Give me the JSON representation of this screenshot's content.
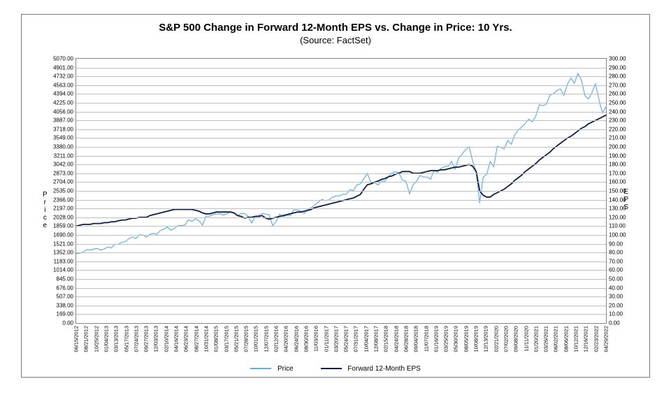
{
  "chart": {
    "type": "line-dual-axis",
    "title": "S&P 500 Change in Forward 12-Month EPS vs. Change in Price: 10 Yrs.",
    "subtitle": "(Source: FactSet)",
    "background_color": "#ffffff",
    "grid_color": "#bfbfbf",
    "border_color": "#7a7a7a",
    "title_fontsize": 15,
    "subtitle_fontsize": 13,
    "tick_fontsize": 8,
    "axis_label_fontsize": 10,
    "y_left": {
      "label": "Price",
      "min": 0.0,
      "max": 5070.0,
      "step": 169.0,
      "ticks": [
        "0.00",
        "169.00",
        "338.00",
        "507.00",
        "676.00",
        "845.00",
        "1014.00",
        "1183.00",
        "1352.00",
        "1521.00",
        "1690.00",
        "1859.00",
        "2028.00",
        "2197.00",
        "2366.00",
        "2535.00",
        "2704.00",
        "2873.00",
        "3042.00",
        "3211.00",
        "3380.00",
        "3549.00",
        "3718.00",
        "3887.00",
        "4056.00",
        "4225.00",
        "4394.00",
        "4563.00",
        "4732.00",
        "4901.00",
        "5070.00"
      ]
    },
    "y_right": {
      "label": "EPS",
      "min": 0.0,
      "max": 300.0,
      "step": 10.0,
      "ticks": [
        "0.00",
        "10.00",
        "20.00",
        "30.00",
        "40.00",
        "50.00",
        "60.00",
        "70.00",
        "80.00",
        "90.00",
        "100.00",
        "110.00",
        "120.00",
        "130.00",
        "140.00",
        "150.00",
        "160.00",
        "170.00",
        "180.00",
        "190.00",
        "200.00",
        "210.00",
        "220.00",
        "230.00",
        "240.00",
        "250.00",
        "260.00",
        "270.00",
        "280.00",
        "290.00",
        "300.00"
      ]
    },
    "x": {
      "labels": [
        "06/15/2012",
        "08/21/2012",
        "10/25/2012",
        "01/04/2013",
        "03/13/2013",
        "05/17/2013",
        "07/24/2013",
        "09/27/2013",
        "12/03/2013",
        "02/10/2014",
        "04/16/2014",
        "06/23/2014",
        "08/27/2014",
        "10/31/2014",
        "01/08/2015",
        "03/17/2015",
        "05/21/2015",
        "07/28/2015",
        "10/01/2015",
        "12/07/2015",
        "02/12/2016",
        "04/20/2016",
        "06/24/2016",
        "08/30/2016",
        "11/03/2016",
        "01/11/2017",
        "03/20/2017",
        "05/24/2017",
        "07/31/2017",
        "10/04/2017",
        "12/08/2017",
        "02/15/2018",
        "04/24/2018",
        "06/28/2018",
        "09/04/2018",
        "11/07/2018",
        "01/16/2019",
        "03/25/2019",
        "05/30/2019",
        "08/05/2019",
        "10/08/2019",
        "12/13/2019",
        "02/21/2020",
        "07/02/2020",
        "09/08/2020",
        "11/11/2020",
        "01/20/2021",
        "03/26/2021",
        "06/02/2021",
        "08/06/2021",
        "10/12/2021",
        "12/16/2021",
        "02/23/2022",
        "04/29/2022"
      ]
    },
    "series": {
      "price": {
        "label": "Price",
        "axis": "left",
        "color": "#5eb1e4",
        "line_width": 1.2,
        "data": [
          1330,
          1340,
          1360,
          1410,
          1400,
          1420,
          1430,
          1400,
          1420,
          1460,
          1440,
          1510,
          1510,
          1550,
          1560,
          1620,
          1650,
          1620,
          1690,
          1690,
          1650,
          1700,
          1720,
          1700,
          1780,
          1800,
          1840,
          1780,
          1820,
          1870,
          1870,
          1880,
          1980,
          1950,
          2000,
          1960,
          1880,
          2050,
          2050,
          2080,
          2090,
          2100,
          2070,
          2100,
          2130,
          2110,
          2060,
          2100,
          2100,
          2050,
          1920,
          2050,
          2060,
          2100,
          2090,
          2080,
          1870,
          1950,
          2090,
          2040,
          2070,
          2060,
          2170,
          2170,
          2150,
          2100,
          2180,
          2210,
          2270,
          2320,
          2370,
          2350,
          2360,
          2410,
          2440,
          2440,
          2470,
          2470,
          2560,
          2540,
          2650,
          2670,
          2770,
          2870,
          2690,
          2700,
          2650,
          2720,
          2720,
          2810,
          2880,
          2900,
          2880,
          2740,
          2720,
          2480,
          2650,
          2720,
          2830,
          2800,
          2800,
          2760,
          2930,
          2890,
          2970,
          3000,
          3010,
          3100,
          2950,
          3170,
          3240,
          3330,
          3380,
          3110,
          2900,
          2300,
          2800,
          2850,
          3100,
          3000,
          3390,
          3370,
          3340,
          3500,
          3430,
          3610,
          3700,
          3760,
          3830,
          3910,
          3860,
          3970,
          4190,
          4170,
          4200,
          4370,
          4400,
          4460,
          4490,
          4370,
          4580,
          4700,
          4600,
          4790,
          4660,
          4360,
          4300,
          4420,
          4590,
          4280,
          4030,
          4150
        ],
        "data_n": 152
      },
      "eps": {
        "label": "Forward 12-Month EPS",
        "axis": "right",
        "color": "#0b1e4a",
        "line_width": 1.8,
        "data": [
          110,
          111,
          112,
          112,
          112,
          113,
          113,
          113,
          114,
          114,
          115,
          115,
          116,
          117,
          117,
          118,
          119,
          119,
          120,
          120,
          120,
          122,
          123,
          124,
          125,
          126,
          127,
          128,
          129,
          129,
          129,
          129,
          129,
          129,
          128,
          127,
          125,
          124,
          124,
          125,
          126,
          126,
          126,
          126,
          126,
          125,
          122,
          121,
          119,
          120,
          120,
          121,
          121,
          122,
          119,
          118,
          119,
          120,
          121,
          122,
          123,
          124,
          125,
          126,
          126,
          127,
          128,
          129,
          131,
          132,
          133,
          134,
          135,
          136,
          137,
          138,
          139,
          140,
          141,
          142,
          144,
          146,
          152,
          157,
          158,
          160,
          161,
          163,
          164,
          166,
          167,
          169,
          170,
          172,
          172,
          172,
          170,
          170,
          170,
          171,
          172,
          173,
          173,
          173,
          174,
          174,
          175,
          176,
          177,
          177,
          178,
          179,
          180,
          178,
          172,
          150,
          145,
          143,
          143,
          146,
          148,
          150,
          152,
          155,
          158,
          162,
          165,
          168,
          172,
          175,
          178,
          181,
          185,
          188,
          191,
          194,
          198,
          201,
          204,
          207,
          210,
          212,
          215,
          218,
          221,
          223,
          226,
          228,
          230,
          232,
          234,
          236
        ],
        "data_n": 152
      }
    },
    "legend_position": "bottom"
  }
}
